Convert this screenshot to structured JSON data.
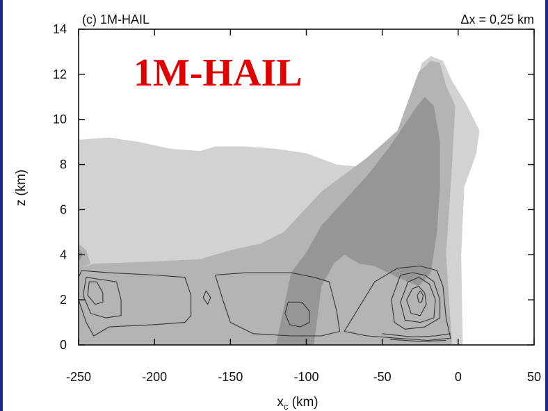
{
  "chart_data": {
    "type": "contour",
    "panel_label": "(c) 1M-HAIL",
    "resolution_label": "Δx = 0,25 km",
    "overlay_label": "1M-HAIL",
    "xlabel_main": "x",
    "xlabel_sub": "c",
    "xlabel_unit": " (km)",
    "ylabel": "z (km)",
    "xlim": [
      -250,
      50
    ],
    "ylim": [
      0,
      14
    ],
    "x_ticks": [
      -250,
      -200,
      -150,
      -100,
      -50,
      0,
      50
    ],
    "y_ticks": [
      0,
      2,
      4,
      6,
      8,
      10,
      12,
      14
    ],
    "fill_colors": [
      "#d2d2d2",
      "#b4b4b4",
      "#969696"
    ],
    "contour_color": "#333333",
    "regions": [
      {
        "level": 1,
        "points": [
          [
            -250,
            0
          ],
          [
            -250,
            9.1
          ],
          [
            -230,
            9.2
          ],
          [
            -210,
            9.0
          ],
          [
            -190,
            8.7
          ],
          [
            -170,
            8.6
          ],
          [
            -160,
            8.8
          ],
          [
            -140,
            8.8
          ],
          [
            -120,
            8.7
          ],
          [
            -100,
            8.5
          ],
          [
            -80,
            8.0
          ],
          [
            -65,
            7.9
          ],
          [
            -50,
            8.3
          ],
          [
            -40,
            9.0
          ],
          [
            -32,
            10.5
          ],
          [
            -28,
            11.5
          ],
          [
            -24,
            12.5
          ],
          [
            -18,
            12.8
          ],
          [
            -10,
            12.6
          ],
          [
            -4,
            11.7
          ],
          [
            6,
            10.6
          ],
          [
            14,
            9.5
          ],
          [
            12,
            8.5
          ],
          [
            4,
            7.0
          ],
          [
            2,
            4.0
          ],
          [
            3,
            0
          ]
        ]
      },
      {
        "level": 2,
        "points": [
          [
            -250,
            0
          ],
          [
            -250,
            3.4
          ],
          [
            -240,
            3.6
          ],
          [
            -200,
            3.7
          ],
          [
            -170,
            3.8
          ],
          [
            -150,
            4.2
          ],
          [
            -130,
            4.5
          ],
          [
            -115,
            5.0
          ],
          [
            -90,
            6.8
          ],
          [
            -60,
            8.3
          ],
          [
            -40,
            9.5
          ],
          [
            -32,
            11.0
          ],
          [
            -26,
            12.1
          ],
          [
            -18,
            12.6
          ],
          [
            -12,
            12.5
          ],
          [
            -8,
            11.5
          ],
          [
            -2,
            10.6
          ],
          [
            -4,
            8.0
          ],
          [
            -6,
            6.0
          ],
          [
            -8,
            4.0
          ],
          [
            -4,
            0
          ]
        ]
      },
      {
        "level": 3,
        "points": [
          [
            -120,
            0
          ],
          [
            -110,
            3.2
          ],
          [
            -100,
            4.1
          ],
          [
            -90,
            5.3
          ],
          [
            -75,
            6.4
          ],
          [
            -60,
            7.5
          ],
          [
            -45,
            8.8
          ],
          [
            -35,
            9.8
          ],
          [
            -28,
            10.5
          ],
          [
            -22,
            11.0
          ],
          [
            -16,
            10.6
          ],
          [
            -12,
            9.0
          ],
          [
            -12,
            7.0
          ],
          [
            -14,
            5.0
          ],
          [
            -18,
            3.2
          ],
          [
            -26,
            2.6
          ],
          [
            -40,
            3.0
          ],
          [
            -55,
            3.5
          ],
          [
            -65,
            3.6
          ],
          [
            -75,
            4.0
          ],
          [
            -82,
            3.6
          ],
          [
            -90,
            2.6
          ],
          [
            -95,
            0
          ]
        ]
      },
      {
        "level": 2,
        "points": [
          [
            -250,
            3.4
          ],
          [
            -250,
            4.5
          ],
          [
            -245,
            4.2
          ],
          [
            -242,
            3.6
          ]
        ]
      },
      {
        "level": 3,
        "points": [
          [
            -250,
            3.7
          ],
          [
            -250,
            4.3
          ],
          [
            -247,
            4.0
          ]
        ]
      }
    ],
    "lines": [
      {
        "closed": true,
        "points": [
          [
            -248,
            3.3
          ],
          [
            -230,
            3.2
          ],
          [
            -200,
            3.1
          ],
          [
            -180,
            3.0
          ],
          [
            -176,
            2.2
          ],
          [
            -176,
            1.3
          ],
          [
            -180,
            1.0
          ],
          [
            -200,
            0.9
          ],
          [
            -230,
            0.8
          ],
          [
            -240,
            0.4
          ],
          [
            -245,
            1.0
          ],
          [
            -250,
            2.0
          ],
          [
            -250,
            3.0
          ]
        ]
      },
      {
        "closed": true,
        "points": [
          [
            -245,
            3.0
          ],
          [
            -235,
            2.9
          ],
          [
            -225,
            2.8
          ],
          [
            -222,
            2.0
          ],
          [
            -222,
            1.3
          ],
          [
            -232,
            1.2
          ],
          [
            -242,
            1.4
          ],
          [
            -247,
            2.2
          ]
        ]
      },
      {
        "closed": true,
        "points": [
          [
            -243,
            2.8
          ],
          [
            -238,
            2.8
          ],
          [
            -234,
            2.3
          ],
          [
            -234,
            1.9
          ],
          [
            -239,
            1.8
          ],
          [
            -244,
            2.2
          ]
        ]
      },
      {
        "closed": true,
        "points": [
          [
            -160,
            3.1
          ],
          [
            -140,
            3.2
          ],
          [
            -110,
            3.2
          ],
          [
            -95,
            3.0
          ],
          [
            -85,
            2.8
          ],
          [
            -80,
            1.5
          ],
          [
            -78,
            0.6
          ],
          [
            -90,
            0.4
          ],
          [
            -110,
            0.4
          ],
          [
            -135,
            0.5
          ],
          [
            -150,
            1.0
          ],
          [
            -155,
            2.0
          ]
        ]
      },
      {
        "closed": true,
        "points": [
          [
            -112,
            1.9
          ],
          [
            -103,
            1.9
          ],
          [
            -98,
            1.5
          ],
          [
            -98,
            1.0
          ],
          [
            -104,
            0.8
          ],
          [
            -111,
            0.9
          ],
          [
            -114,
            1.4
          ]
        ]
      },
      {
        "closed": true,
        "points": [
          [
            -75,
            0.6
          ],
          [
            -65,
            1.7
          ],
          [
            -55,
            2.8
          ],
          [
            -40,
            3.4
          ],
          [
            -25,
            3.5
          ],
          [
            -14,
            3.3
          ],
          [
            -10,
            2.6
          ],
          [
            -8,
            1.2
          ],
          [
            -5,
            0.3
          ],
          [
            -20,
            0.2
          ],
          [
            -40,
            0.3
          ],
          [
            -60,
            0.4
          ]
        ]
      },
      {
        "closed": true,
        "points": [
          [
            -44,
            2.0
          ],
          [
            -38,
            3.1
          ],
          [
            -30,
            3.2
          ],
          [
            -22,
            3.1
          ],
          [
            -16,
            2.8
          ],
          [
            -12,
            2.0
          ],
          [
            -12,
            1.2
          ],
          [
            -22,
            0.8
          ],
          [
            -35,
            0.7
          ],
          [
            -42,
            1.0
          ]
        ]
      },
      {
        "closed": true,
        "points": [
          [
            -38,
            1.9
          ],
          [
            -33,
            2.8
          ],
          [
            -26,
            3.0
          ],
          [
            -19,
            2.7
          ],
          [
            -15,
            2.0
          ],
          [
            -16,
            1.2
          ],
          [
            -25,
            1.0
          ],
          [
            -35,
            1.1
          ]
        ]
      },
      {
        "closed": true,
        "points": [
          [
            -34,
            2.0
          ],
          [
            -30,
            2.5
          ],
          [
            -26,
            2.6
          ],
          [
            -22,
            2.3
          ],
          [
            -21,
            1.8
          ],
          [
            -25,
            1.3
          ],
          [
            -31,
            1.4
          ]
        ]
      },
      {
        "closed": true,
        "points": [
          [
            -27,
            2.2
          ],
          [
            -25,
            2.4
          ],
          [
            -23,
            2.2
          ],
          [
            -24,
            1.9
          ],
          [
            -26,
            1.9
          ]
        ]
      },
      {
        "closed": false,
        "points": [
          [
            -50,
            0.5
          ],
          [
            -30,
            0.35
          ],
          [
            -15,
            0.4
          ],
          [
            -5,
            0.5
          ]
        ]
      },
      {
        "closed": false,
        "points": [
          [
            -45,
            0.25
          ],
          [
            -25,
            0.15
          ],
          [
            -8,
            0.2
          ]
        ]
      },
      {
        "closed": false,
        "points": [
          [
            -168,
            2.1
          ],
          [
            -165,
            1.8
          ],
          [
            -163,
            2.1
          ],
          [
            -166,
            2.4
          ],
          [
            -168,
            2.1
          ]
        ]
      }
    ]
  }
}
